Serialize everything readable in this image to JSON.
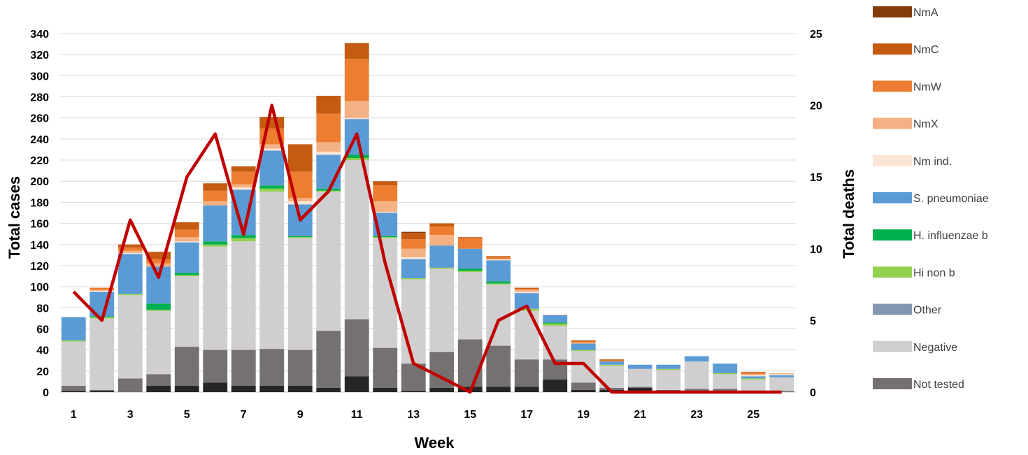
{
  "chart_data": {
    "type": "bar",
    "stacked": true,
    "xlabel": "Week",
    "ylabel": "Total cases",
    "y2label": "Total deaths",
    "ylim": [
      0,
      340
    ],
    "y2lim": [
      0,
      25
    ],
    "yticks": [
      0,
      20,
      40,
      60,
      80,
      100,
      120,
      140,
      160,
      180,
      200,
      220,
      240,
      260,
      280,
      300,
      320,
      340
    ],
    "y2ticks": [
      0,
      5,
      10,
      15,
      20,
      25
    ],
    "xticks": [
      "1",
      "3",
      "5",
      "7",
      "9",
      "11",
      "13",
      "15",
      "17",
      "19",
      "21",
      "23",
      "25"
    ],
    "grid": true,
    "legend_position": "right",
    "categories": [
      1,
      2,
      3,
      4,
      5,
      6,
      7,
      8,
      9,
      10,
      11,
      12,
      13,
      14,
      15,
      16,
      17,
      18,
      19,
      20,
      21,
      22,
      23,
      24,
      25,
      26
    ],
    "stack_series": [
      {
        "name": "",
        "color": "#262626",
        "values": [
          1,
          1,
          0,
          6,
          6,
          9,
          6,
          6,
          6,
          4,
          15,
          4,
          1,
          4,
          5,
          5,
          5,
          12,
          2,
          2,
          4,
          1,
          0,
          0,
          0,
          0
        ]
      },
      {
        "name": "Not tested",
        "color": "#767171",
        "values": [
          5,
          1,
          13,
          11,
          37,
          31,
          34,
          35,
          34,
          54,
          54,
          38,
          26,
          34,
          45,
          39,
          26,
          19,
          7,
          2,
          1,
          1,
          3,
          3,
          1,
          1
        ]
      },
      {
        "name": "Negative",
        "color": "#d0cece",
        "values": [
          42,
          68,
          79,
          60,
          67,
          98,
          103,
          149,
          106,
          132,
          151,
          104,
          80,
          79,
          64,
          58,
          46,
          32,
          30,
          21,
          17,
          19,
          26,
          14,
          11,
          13
        ]
      },
      {
        "name": "Other",
        "color": "#8497b0",
        "values": [
          0,
          0,
          0,
          0,
          0,
          0,
          0,
          0,
          0,
          0,
          0,
          0,
          0,
          0,
          0,
          0,
          0,
          0,
          0,
          0,
          0,
          0,
          0,
          0,
          0,
          0
        ]
      },
      {
        "name": "Hi non b",
        "color": "#92d050",
        "values": [
          1,
          1,
          1,
          1,
          1,
          2,
          3,
          3,
          1,
          1,
          2,
          1,
          1,
          1,
          1,
          1,
          2,
          2,
          1,
          1,
          0,
          1,
          0,
          1,
          1,
          0
        ]
      },
      {
        "name": "H. influenzae b",
        "color": "#00b050",
        "values": [
          0,
          1,
          0,
          6,
          2,
          3,
          3,
          3,
          1,
          2,
          3,
          1,
          0,
          0,
          2,
          2,
          0,
          1,
          0,
          0,
          0,
          0,
          0,
          0,
          0,
          0
        ]
      },
      {
        "name": "S. pneumoniae",
        "color": "#5b9bd5",
        "values": [
          22,
          23,
          38,
          35,
          29,
          34,
          43,
          33,
          30,
          32,
          34,
          22,
          18,
          21,
          19,
          20,
          15,
          7,
          6,
          3,
          4,
          4,
          5,
          9,
          2,
          2
        ]
      },
      {
        "name": "Nm ind.",
        "color": "#fbe5d6",
        "values": [
          0,
          1,
          1,
          0,
          1,
          0,
          2,
          2,
          3,
          3,
          1,
          1,
          2,
          0,
          0,
          1,
          1,
          1,
          0,
          0,
          0,
          0,
          0,
          0,
          1,
          1
        ]
      },
      {
        "name": "NmX",
        "color": "#f4b183",
        "values": [
          0,
          1,
          2,
          3,
          4,
          4,
          3,
          4,
          3,
          9,
          16,
          10,
          8,
          10,
          0,
          0,
          2,
          0,
          1,
          0,
          0,
          0,
          0,
          0,
          1,
          1
        ]
      },
      {
        "name": "NmW",
        "color": "#ed7d31",
        "values": [
          0,
          2,
          3,
          4,
          7,
          10,
          12,
          15,
          25,
          27,
          40,
          15,
          9,
          8,
          10,
          2,
          1,
          0,
          1,
          1,
          0,
          0,
          0,
          0,
          1,
          0
        ]
      },
      {
        "name": "NmC",
        "color": "#c55a11",
        "values": [
          0,
          0,
          3,
          7,
          7,
          7,
          5,
          11,
          26,
          17,
          15,
          4,
          6,
          3,
          1,
          1,
          1,
          0,
          1,
          1,
          0,
          0,
          0,
          0,
          1,
          0
        ]
      },
      {
        "name": "NmA",
        "color": "#843c0c",
        "values": [
          0,
          0,
          0,
          0,
          0,
          0,
          0,
          0,
          0,
          0,
          0,
          0,
          1,
          0,
          0,
          0,
          0,
          0,
          0,
          0,
          0,
          0,
          0,
          0,
          0,
          0
        ]
      }
    ],
    "line_series": {
      "name": "",
      "color": "#c00000",
      "axis": "right",
      "values": [
        7,
        5,
        12,
        8,
        15,
        18,
        11,
        20,
        12,
        14,
        18,
        9,
        2,
        1,
        0,
        5,
        6,
        2,
        2,
        0,
        0,
        0,
        0,
        0,
        0,
        0
      ]
    },
    "legend": [
      "NmA",
      "NmC",
      "NmW",
      "NmX",
      "Nm ind.",
      "S. pneumoniae",
      "H. influenzae b",
      "Hi non b",
      "Other",
      "Negative",
      "Not tested"
    ]
  }
}
